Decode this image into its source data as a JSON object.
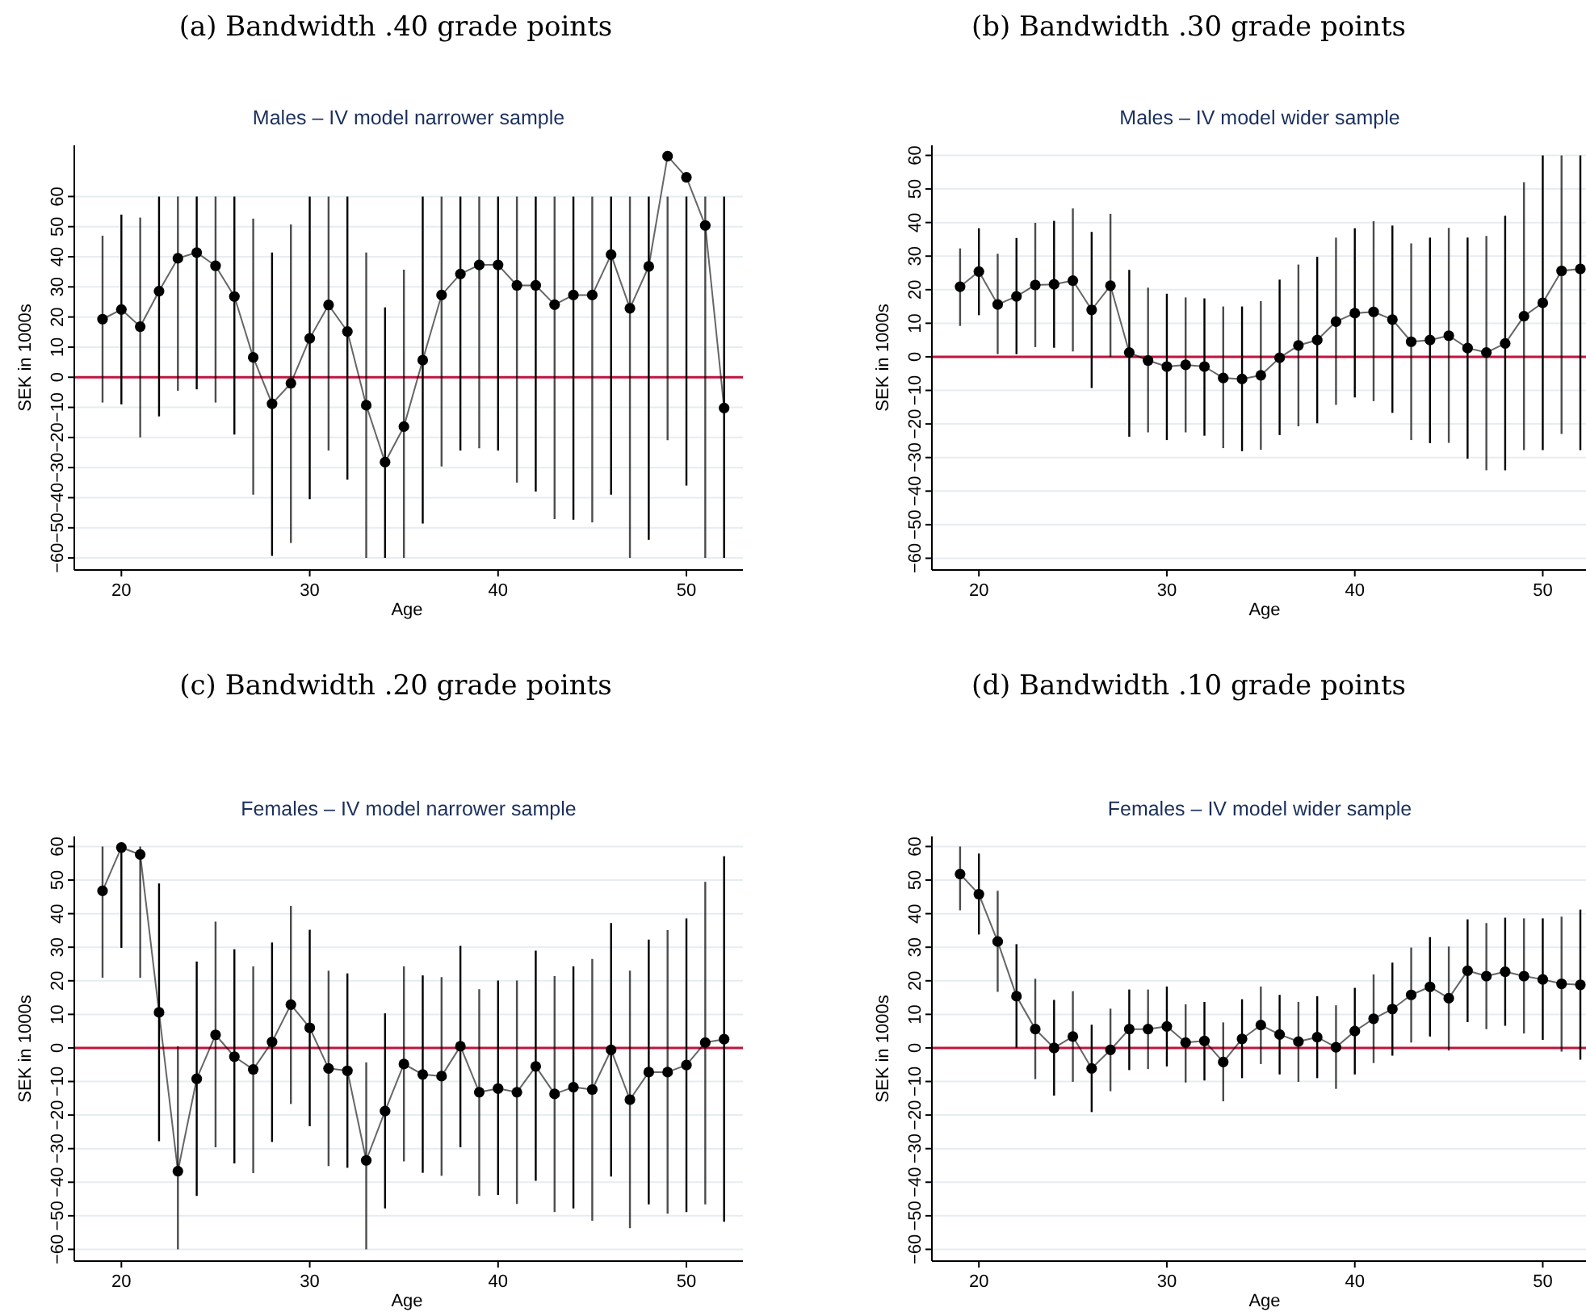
{
  "chart_data": [
    {
      "type": "line",
      "title": "(a) Bandwidth .40 grade points",
      "subtitle": "Males – IV model narrower sample",
      "xlabel": "Age",
      "ylabel": "SEK in 1000s",
      "color": "#000000",
      "marker": "circle",
      "line_style": "solid",
      "grid": "y",
      "x": [
        19,
        20,
        21,
        22,
        23,
        24,
        25,
        26,
        27,
        28,
        29,
        30,
        31,
        32,
        33,
        34,
        35,
        36,
        37,
        38,
        39,
        40,
        41,
        42,
        43,
        44,
        45,
        46,
        47,
        48,
        49,
        50,
        51,
        52
      ],
      "values": [
        19.3,
        22.5,
        16.8,
        28.6,
        39.5,
        41.4,
        37,
        26.8,
        6.6,
        -8.8,
        -2,
        12.9,
        24,
        15.2,
        -9.3,
        -28.2,
        -16.4,
        5.7,
        27.3,
        34.3,
        37.3,
        37.3,
        30.5,
        30.5,
        24.1,
        27.3,
        27.3,
        40.7,
        22.9,
        36.8,
        73.4,
        66.4,
        50.4,
        -10.2
      ],
      "errors": [
        [
          -8.4,
          47
        ],
        [
          -9,
          54
        ],
        [
          -20,
          53
        ],
        [
          -13,
          60
        ],
        [
          -4.5,
          60
        ],
        [
          -4,
          60
        ],
        [
          -8.4,
          60
        ],
        [
          -19,
          60
        ],
        [
          -39,
          52.7
        ],
        [
          -59.3,
          41.4
        ],
        [
          -55,
          50.7
        ],
        [
          -40.5,
          60
        ],
        [
          -24.3,
          60
        ],
        [
          -34,
          60
        ],
        [
          -60,
          41.4
        ],
        [
          -60,
          23.2
        ],
        [
          -60,
          35.7
        ],
        [
          -48.6,
          60
        ],
        [
          -29.6,
          60
        ],
        [
          -24.3,
          60
        ],
        [
          -23.6,
          60
        ],
        [
          -24.3,
          60
        ],
        [
          -35,
          60
        ],
        [
          -37.9,
          60
        ],
        [
          -47.1,
          60
        ],
        [
          -47.3,
          60
        ],
        [
          -48.2,
          60
        ],
        [
          -39,
          60
        ],
        [
          -60,
          60
        ],
        [
          -54,
          60
        ],
        [
          -20.9,
          60
        ],
        [
          -36,
          60
        ],
        [
          -60,
          60
        ],
        [
          -60,
          60
        ]
      ],
      "xlim": [
        17.5,
        53
      ],
      "ylim": [
        -64,
        77
      ],
      "xticks": [
        20,
        30,
        40,
        50
      ],
      "yticks": [
        -60,
        -50,
        -40,
        -30,
        -20,
        -10,
        0,
        10,
        20,
        30,
        40,
        50,
        60
      ],
      "ref_lines": [
        {
          "axis": "y",
          "value": 0,
          "color": "#c0143c"
        }
      ]
    },
    {
      "type": "line",
      "title": "(b) Bandwidth .30 grade points",
      "subtitle": "Males – IV model wider sample",
      "xlabel": "Age",
      "ylabel": "SEK in 1000s",
      "color": "#000000",
      "marker": "circle",
      "line_style": "solid",
      "grid": "y",
      "x": [
        19,
        20,
        21,
        22,
        23,
        24,
        25,
        26,
        27,
        28,
        29,
        30,
        31,
        32,
        33,
        34,
        35,
        36,
        37,
        38,
        39,
        40,
        41,
        42,
        43,
        44,
        45,
        46,
        47,
        48,
        49,
        50,
        51,
        52
      ],
      "values": [
        20.9,
        25.4,
        15.6,
        18,
        21.4,
        21.6,
        22.7,
        14,
        21.2,
        1.3,
        -1.1,
        -2.9,
        -2.4,
        -2.9,
        -6.3,
        -6.6,
        -5.5,
        -0.3,
        3.4,
        5,
        10.5,
        13,
        13.4,
        11.1,
        4.5,
        5,
        6.3,
        2.6,
        1.3,
        4,
        12.1,
        16.1,
        25.6,
        26.2
      ],
      "errors": [
        [
          9.2,
          32.3
        ],
        [
          12.4,
          38.3
        ],
        [
          0.8,
          30.7
        ],
        [
          0.8,
          35.4
        ],
        [
          2.9,
          39.9
        ],
        [
          2.7,
          40.5
        ],
        [
          1.6,
          44.2
        ],
        [
          -9.3,
          37.2
        ],
        [
          0,
          42.6
        ],
        [
          -23.8,
          25.9
        ],
        [
          -22.5,
          20.6
        ],
        [
          -24.8,
          18.8
        ],
        [
          -22.5,
          17.7
        ],
        [
          -23.5,
          17.4
        ],
        [
          -27.2,
          15
        ],
        [
          -28.1,
          15
        ],
        [
          -27.7,
          16.6
        ],
        [
          -23.3,
          23
        ],
        [
          -20.7,
          27.5
        ],
        [
          -19.8,
          29.8
        ],
        [
          -14.3,
          35.5
        ],
        [
          -12.1,
          38.3
        ],
        [
          -13.2,
          40.4
        ],
        [
          -16.7,
          39.1
        ],
        [
          -24.8,
          33.8
        ],
        [
          -25.7,
          35.5
        ],
        [
          -25.6,
          38.4
        ],
        [
          -30.4,
          35.5
        ],
        [
          -33.8,
          36
        ],
        [
          -33.8,
          42
        ],
        [
          -27.8,
          52
        ],
        [
          -27.8,
          60
        ],
        [
          -23,
          60
        ],
        [
          -27.8,
          60
        ]
      ],
      "xlim": [
        17.5,
        52.3
      ],
      "ylim": [
        -63.5,
        63
      ],
      "xticks": [
        20,
        30,
        40,
        50
      ],
      "yticks": [
        -60,
        -50,
        -40,
        -30,
        -20,
        -10,
        0,
        10,
        20,
        30,
        40,
        50,
        60
      ],
      "ref_lines": [
        {
          "axis": "y",
          "value": 0,
          "color": "#c0143c"
        }
      ]
    },
    {
      "type": "line",
      "title": "(c) Bandwidth .20 grade points",
      "subtitle": "Females – IV model narrower sample",
      "xlabel": "Age",
      "ylabel": "SEK in 1000s",
      "color": "#000000",
      "marker": "circle",
      "line_style": "solid",
      "grid": "y",
      "x": [
        19,
        20,
        21,
        22,
        23,
        24,
        25,
        26,
        27,
        28,
        29,
        30,
        31,
        32,
        33,
        34,
        35,
        36,
        37,
        38,
        39,
        40,
        41,
        42,
        43,
        44,
        45,
        46,
        47,
        48,
        49,
        50,
        51,
        52
      ],
      "values": [
        46.8,
        59.7,
        57.6,
        10.6,
        -36.7,
        -9.2,
        3.9,
        -2.6,
        -6.4,
        1.8,
        12.9,
        6,
        -6.1,
        -6.8,
        -33.5,
        -18.8,
        -4.8,
        -7.9,
        -8.4,
        0.5,
        -13.2,
        -12.1,
        -13.2,
        -5.5,
        -13.7,
        -11.7,
        -12.4,
        -0.6,
        -15.4,
        -7.2,
        -7.2,
        -5.1,
        1.6,
        2.6
      ],
      "errors": [
        [
          20.9,
          60
        ],
        [
          29.8,
          60
        ],
        [
          20.9,
          60
        ],
        [
          -27.8,
          49
        ],
        [
          -60,
          0.5
        ],
        [
          -44.1,
          25.7
        ],
        [
          -29.6,
          37.6
        ],
        [
          -34.4,
          29.4
        ],
        [
          -37.3,
          24.3
        ],
        [
          -28,
          31.4
        ],
        [
          -16.7,
          42.3
        ],
        [
          -23.3,
          35.2
        ],
        [
          -35.2,
          23
        ],
        [
          -35.7,
          22.2
        ],
        [
          -60,
          -4.3
        ],
        [
          -47.8,
          10.3
        ],
        [
          -33.8,
          24.3
        ],
        [
          -37.2,
          21.6
        ],
        [
          -38.1,
          21.1
        ],
        [
          -29.6,
          30.4
        ],
        [
          -44.1,
          17.5
        ],
        [
          -43.8,
          20.1
        ],
        [
          -46.5,
          20.1
        ],
        [
          -39.6,
          29
        ],
        [
          -48.9,
          21.4
        ],
        [
          -47.8,
          24.3
        ],
        [
          -51.5,
          26.5
        ],
        [
          -38.3,
          37.2
        ],
        [
          -53.7,
          23
        ],
        [
          -46.6,
          32.3
        ],
        [
          -49.4,
          35.1
        ],
        [
          -48.9,
          38.6
        ],
        [
          -46.6,
          49.5
        ],
        [
          -51.8,
          57.1
        ]
      ],
      "xlim": [
        17.5,
        53
      ],
      "ylim": [
        -63.5,
        63
      ],
      "xticks": [
        20,
        30,
        40,
        50
      ],
      "yticks": [
        -60,
        -50,
        -40,
        -30,
        -20,
        -10,
        0,
        10,
        20,
        30,
        40,
        50,
        60
      ],
      "ref_lines": [
        {
          "axis": "y",
          "value": 0,
          "color": "#c0143c"
        }
      ]
    },
    {
      "type": "line",
      "title": "(d) Bandwidth .10 grade points",
      "subtitle": "Females – IV model wider sample",
      "xlabel": "Age",
      "ylabel": "SEK in 1000s",
      "color": "#000000",
      "marker": "circle",
      "line_style": "solid",
      "grid": "y",
      "x": [
        19,
        20,
        21,
        22,
        23,
        24,
        25,
        26,
        27,
        28,
        29,
        30,
        31,
        32,
        33,
        34,
        35,
        36,
        37,
        38,
        39,
        40,
        41,
        42,
        43,
        44,
        45,
        46,
        47,
        48,
        49,
        50,
        51,
        52
      ],
      "values": [
        51.8,
        45.8,
        31.7,
        15.4,
        5.6,
        0,
        3.4,
        -6.1,
        -0.6,
        5.6,
        5.6,
        6.4,
        1.6,
        2.1,
        -4.2,
        2.7,
        6.8,
        4,
        1.9,
        3.2,
        0.2,
        5,
        8.7,
        11.6,
        15.8,
        18.2,
        14.8,
        23,
        21.4,
        22.7,
        21.4,
        20.4,
        19.1,
        18.8
      ],
      "errors": [
        [
          41,
          60
        ],
        [
          33.8,
          57.9
        ],
        [
          16.7,
          46.8
        ],
        [
          0,
          30.9
        ],
        [
          -9.3,
          20.6
        ],
        [
          -14.2,
          14.3
        ],
        [
          -10.1,
          16.9
        ],
        [
          -19.1,
          6.9
        ],
        [
          -12.9,
          11.7
        ],
        [
          -6.6,
          17.4
        ],
        [
          -6.3,
          17.4
        ],
        [
          -5.5,
          18.3
        ],
        [
          -10.3,
          13
        ],
        [
          -9.7,
          13.7
        ],
        [
          -15.9,
          7.6
        ],
        [
          -9,
          14.5
        ],
        [
          -4.8,
          18.3
        ],
        [
          -7.9,
          15.8
        ],
        [
          -10.1,
          13.7
        ],
        [
          -9,
          15.4
        ],
        [
          -12.2,
          12.7
        ],
        [
          -7.9,
          17.9
        ],
        [
          -4.5,
          21.9
        ],
        [
          -2.3,
          25.4
        ],
        [
          1.6,
          29.9
        ],
        [
          3.4,
          33
        ],
        [
          -0.8,
          30.2
        ],
        [
          7.7,
          38.3
        ],
        [
          5.6,
          37.2
        ],
        [
          6.6,
          38.8
        ],
        [
          4.3,
          38.6
        ],
        [
          2.4,
          38.6
        ],
        [
          -1.1,
          39.1
        ],
        [
          -3.5,
          41.2
        ]
      ],
      "xlim": [
        17.5,
        52.3
      ],
      "ylim": [
        -63.5,
        63
      ],
      "xticks": [
        20,
        30,
        40,
        50
      ],
      "yticks": [
        -60,
        -50,
        -40,
        -30,
        -20,
        -10,
        0,
        10,
        20,
        30,
        40,
        50,
        60
      ],
      "ref_lines": [
        {
          "axis": "y",
          "value": 0,
          "color": "#c0143c"
        }
      ]
    }
  ]
}
